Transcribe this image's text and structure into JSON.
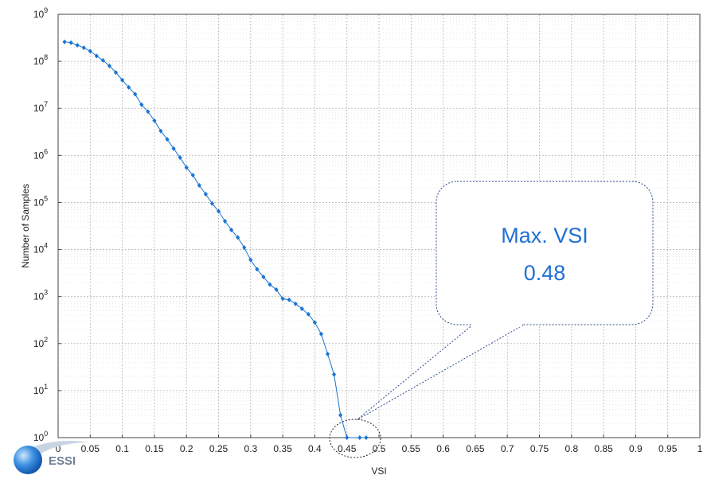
{
  "chart_data": {
    "type": "line",
    "title": "",
    "xlabel": "VSI",
    "ylabel": "Number of Samples",
    "xlim": [
      0,
      1
    ],
    "ylim": [
      1,
      1000000000
    ],
    "yscale": "log",
    "grid": true,
    "x_ticks": [
      "0",
      "0.05",
      "0.1",
      "0.15",
      "0.2",
      "0.25",
      "0.3",
      "0.35",
      "0.4",
      "0.45",
      "0.5",
      "0.55",
      "0.6",
      "0.65",
      "0.7",
      "0.75",
      "0.8",
      "0.85",
      "0.9",
      "0.95",
      "1"
    ],
    "y_ticks": [
      {
        "base": "10",
        "exp": "0"
      },
      {
        "base": "10",
        "exp": "1"
      },
      {
        "base": "10",
        "exp": "2"
      },
      {
        "base": "10",
        "exp": "3"
      },
      {
        "base": "10",
        "exp": "4"
      },
      {
        "base": "10",
        "exp": "5"
      },
      {
        "base": "10",
        "exp": "6"
      },
      {
        "base": "10",
        "exp": "7"
      },
      {
        "base": "10",
        "exp": "8"
      },
      {
        "base": "10",
        "exp": "9"
      }
    ],
    "series": [
      {
        "color": "#1a75d2",
        "points": [
          [
            0.01,
            260000000
          ],
          [
            0.02,
            250000000
          ],
          [
            0.03,
            220000000
          ],
          [
            0.04,
            195000000
          ],
          [
            0.05,
            165000000
          ],
          [
            0.06,
            130000000
          ],
          [
            0.07,
            105000000
          ],
          [
            0.08,
            80000000
          ],
          [
            0.09,
            58000000
          ],
          [
            0.1,
            40000000
          ],
          [
            0.11,
            28000000
          ],
          [
            0.12,
            20000000
          ],
          [
            0.13,
            12000000
          ],
          [
            0.14,
            8500000
          ],
          [
            0.15,
            5500000
          ],
          [
            0.16,
            3300000
          ],
          [
            0.17,
            2200000
          ],
          [
            0.18,
            1400000
          ],
          [
            0.19,
            900000
          ],
          [
            0.2,
            550000
          ],
          [
            0.21,
            380000
          ],
          [
            0.22,
            230000
          ],
          [
            0.23,
            150000
          ],
          [
            0.24,
            95000
          ],
          [
            0.25,
            65000
          ],
          [
            0.26,
            40000
          ],
          [
            0.27,
            26000
          ],
          [
            0.28,
            18000
          ],
          [
            0.29,
            11000
          ],
          [
            0.3,
            6000
          ],
          [
            0.31,
            3800
          ],
          [
            0.32,
            2600
          ],
          [
            0.33,
            1800
          ],
          [
            0.34,
            1400
          ],
          [
            0.35,
            900
          ],
          [
            0.36,
            850
          ],
          [
            0.37,
            700
          ],
          [
            0.38,
            550
          ],
          [
            0.39,
            420
          ],
          [
            0.4,
            280
          ],
          [
            0.41,
            160
          ],
          [
            0.42,
            60
          ],
          [
            0.43,
            22
          ],
          [
            0.44,
            3
          ],
          [
            0.45,
            1
          ],
          [
            0.47,
            1
          ],
          [
            0.48,
            1
          ]
        ]
      }
    ],
    "annotation": {
      "text_line1": "Max. VSI",
      "text_line2": "0.48",
      "target_x": 0.47,
      "target_y": 1
    }
  },
  "logo": {
    "text": "ESSI"
  },
  "colors": {
    "series": "#1a75d2",
    "grid": "#b5b5b5",
    "callout_border": "#2b4a8a",
    "callout_text": "#1f6fd6"
  }
}
